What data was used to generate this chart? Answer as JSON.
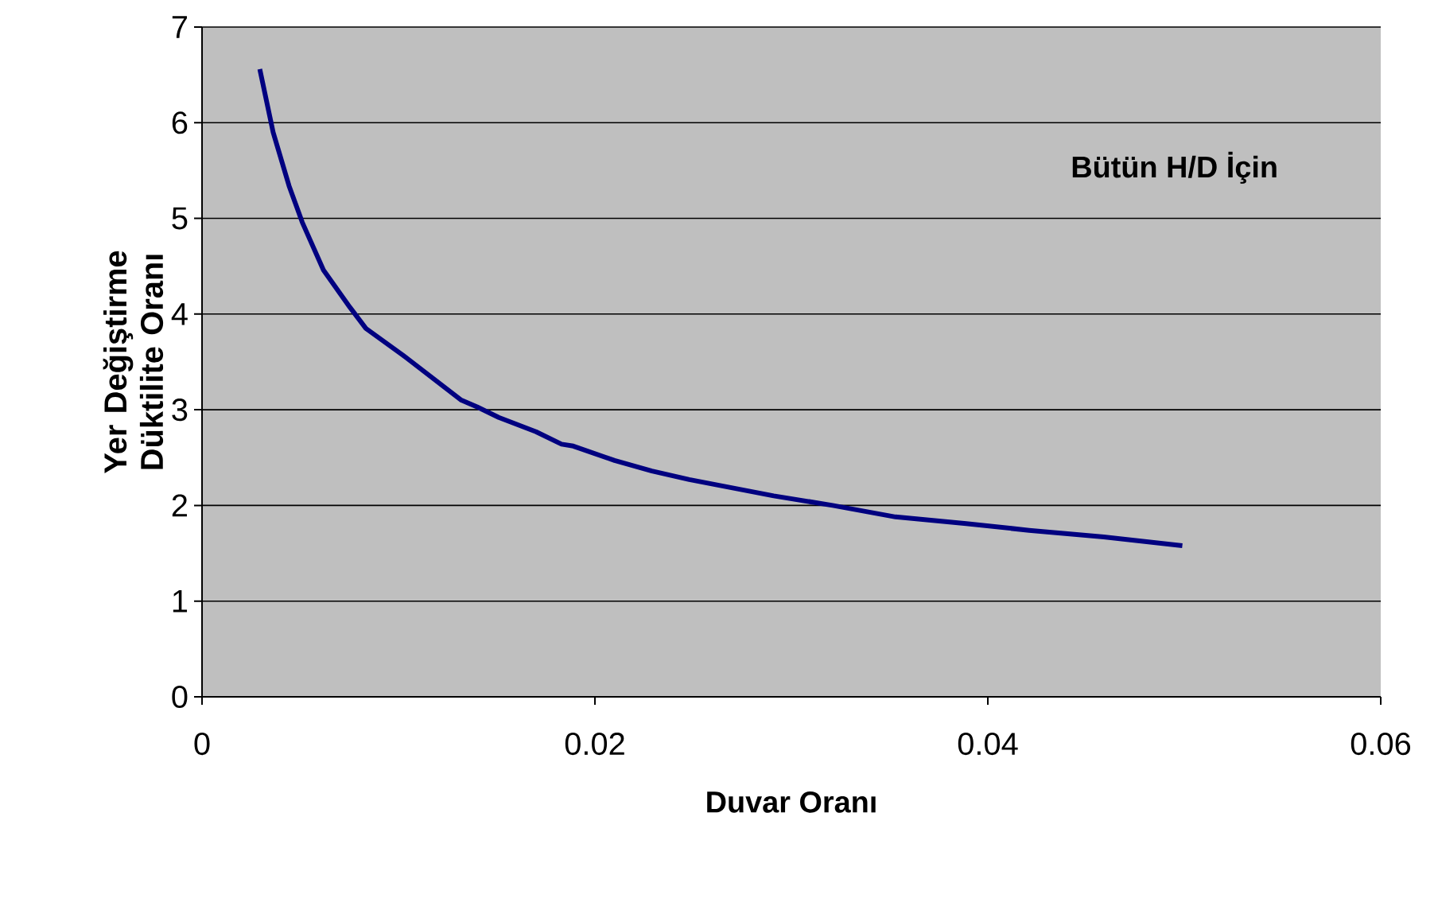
{
  "chart_data": {
    "type": "line",
    "xlabel": "Duvar Oranı",
    "ylabel": "Yer Değiştirme Düktilite Oranı",
    "annotations": [
      "Bütün H/D İçin"
    ],
    "x": [
      0.00294,
      0.00362,
      0.00443,
      0.0051,
      0.00618,
      0.00753,
      0.00834,
      0.01023,
      0.0132,
      0.014,
      0.0151,
      0.017,
      0.0183,
      0.0189,
      0.021,
      0.0229,
      0.0248,
      0.0291,
      0.0321,
      0.0353,
      0.0389,
      0.0421,
      0.0459,
      0.0499
    ],
    "series": [
      {
        "color": "#000080",
        "values": [
          6.56,
          5.9,
          5.34,
          4.96,
          4.46,
          4.07,
          3.85,
          3.57,
          3.1,
          3.03,
          2.92,
          2.77,
          2.64,
          2.62,
          2.47,
          2.36,
          2.27,
          2.1,
          2.0,
          1.88,
          1.81,
          1.74,
          1.67,
          1.58
        ]
      }
    ],
    "xlim": [
      0,
      0.06
    ],
    "ylim": [
      0,
      7
    ],
    "xticks": [
      0,
      0.02,
      0.04,
      0.06
    ],
    "yticks": [
      0,
      1,
      2,
      3,
      4,
      5,
      6,
      7
    ],
    "grid": "y",
    "marker": "none",
    "line_style": "solid"
  }
}
